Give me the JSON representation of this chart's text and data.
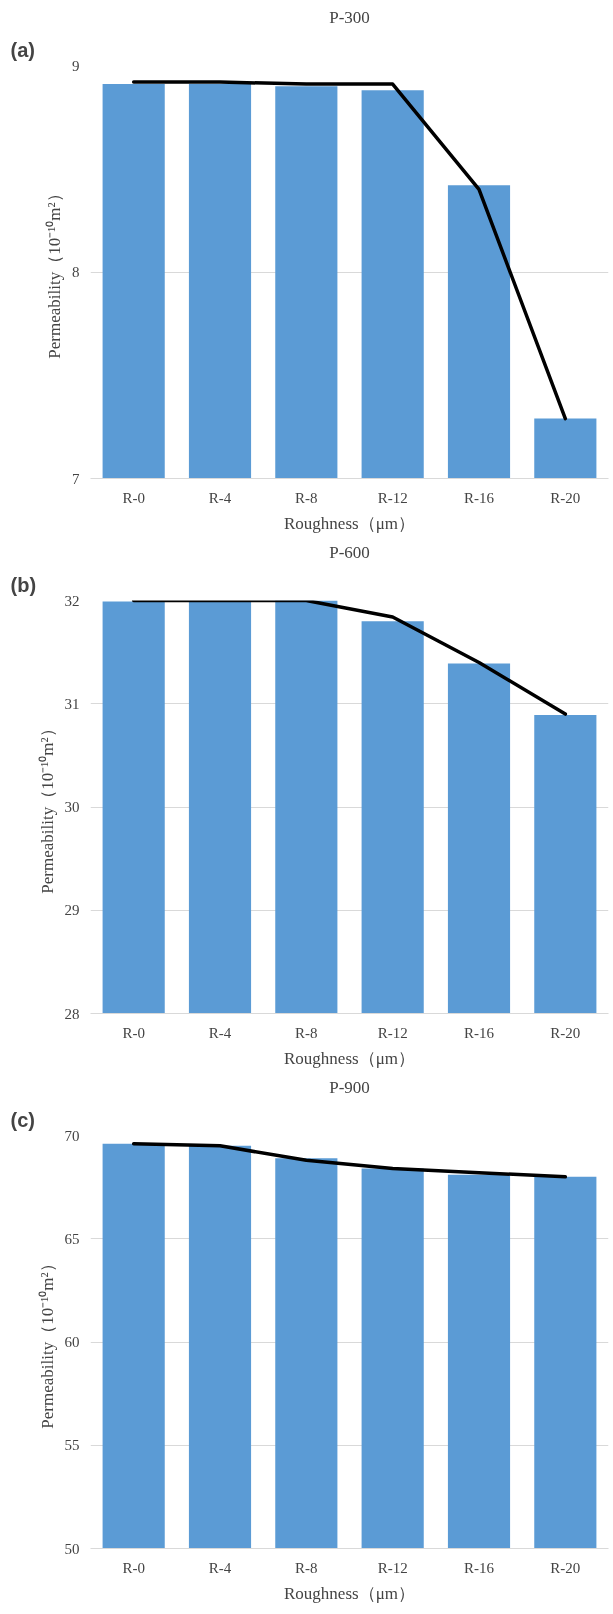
{
  "chart_data": [
    {
      "type": "bar",
      "title": "P-300",
      "xlabel": "Roughness（μm）",
      "ylabel": "Permeability（10⁻¹⁰m²）",
      "annotations": [
        "(a)"
      ],
      "categories": [
        "R-0",
        "R-4",
        "R-8",
        "R-12",
        "R-16",
        "R-20"
      ],
      "ylim": [
        7,
        9
      ],
      "yticks": [
        7,
        8,
        9
      ],
      "grid": "y",
      "series": [
        {
          "color": "#5b9bd5",
          "values": [
            8.91,
            8.91,
            8.9,
            8.88,
            8.42,
            7.29
          ]
        },
        {
          "type": "line",
          "color": "#000000",
          "values": [
            8.92,
            8.92,
            8.91,
            8.91,
            8.4,
            7.29
          ]
        }
      ]
    },
    {
      "type": "bar",
      "title": "P-600",
      "xlabel": "Roughness（μm）",
      "ylabel": "Permeability（10⁻¹⁰m²）",
      "annotations": [
        "(b)"
      ],
      "categories": [
        "R-0",
        "R-4",
        "R-8",
        "R-12",
        "R-16",
        "R-20"
      ],
      "ylim": [
        28,
        32
      ],
      "yticks": [
        28,
        29,
        30,
        31,
        32
      ],
      "grid": "y",
      "series": [
        {
          "color": "#5b9bd5",
          "values": [
            31.99,
            31.99,
            32.0,
            31.8,
            31.39,
            30.89
          ]
        },
        {
          "type": "line",
          "color": "#000000",
          "values": [
            32.0,
            32.0,
            32.0,
            31.84,
            31.4,
            30.9
          ]
        }
      ]
    },
    {
      "type": "bar",
      "title": "P-900",
      "xlabel": "Roughness（μm）",
      "ylabel": "Permeability（10⁻¹⁰m²）",
      "annotations": [
        "(c)"
      ],
      "categories": [
        "R-0",
        "R-4",
        "R-8",
        "R-12",
        "R-16",
        "R-20"
      ],
      "ylim": [
        50,
        70
      ],
      "yticks": [
        50,
        55,
        60,
        65,
        70
      ],
      "grid": "y",
      "series": [
        {
          "color": "#5b9bd5",
          "values": [
            69.6,
            69.5,
            68.9,
            68.4,
            68.1,
            68.0
          ]
        },
        {
          "type": "line",
          "color": "#000000",
          "values": [
            69.6,
            69.5,
            68.8,
            68.4,
            68.2,
            68.0
          ]
        }
      ]
    }
  ]
}
